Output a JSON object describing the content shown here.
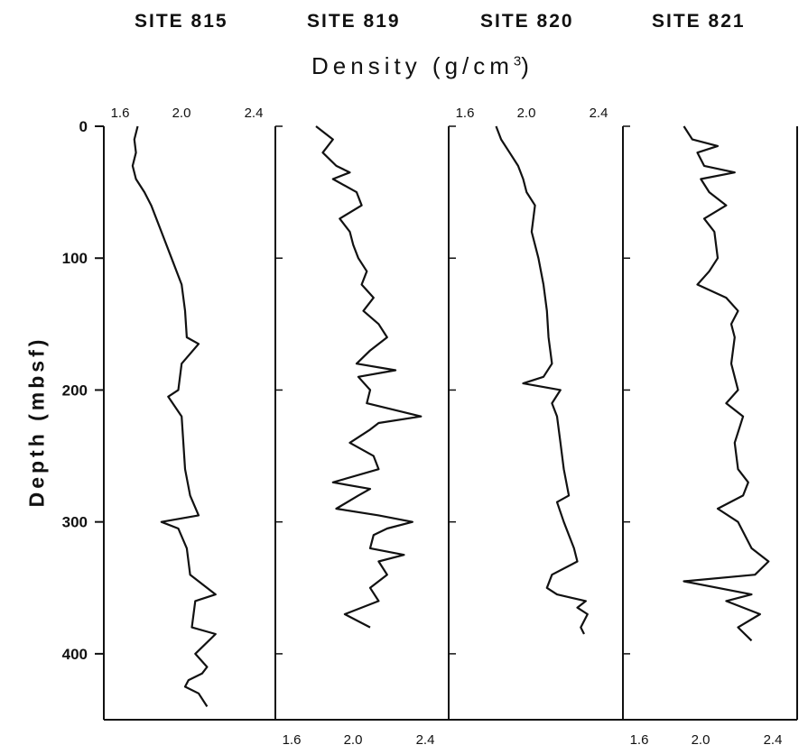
{
  "chart_data": {
    "type": "line",
    "orientation": "depth-log",
    "xlabel_text": "Density (g/cm",
    "xlabel_sup": "3",
    "xlabel_close": ")",
    "ylabel": "Depth (mbsf)",
    "ylim": [
      0,
      450
    ],
    "y_ticks": [
      0,
      100,
      200,
      300,
      400
    ],
    "x_ticks": [
      "1.6",
      "2.0",
      "2.4"
    ],
    "panels": [
      {
        "title": "SITE 815",
        "xlim": [
          1.6,
          2.4
        ],
        "tick_labels": "top",
        "depth": [
          0,
          10,
          20,
          30,
          40,
          50,
          60,
          80,
          100,
          120,
          140,
          160,
          165,
          180,
          200,
          205,
          220,
          240,
          260,
          280,
          295,
          300,
          305,
          320,
          340,
          355,
          360,
          380,
          385,
          400,
          410,
          415,
          420,
          425,
          430,
          440
        ],
        "density": [
          1.64,
          1.62,
          1.63,
          1.61,
          1.63,
          1.68,
          1.72,
          1.78,
          1.84,
          1.9,
          1.92,
          1.93,
          2.0,
          1.9,
          1.88,
          1.82,
          1.9,
          1.91,
          1.92,
          1.95,
          2.0,
          1.78,
          1.88,
          1.93,
          1.95,
          2.1,
          1.98,
          1.96,
          2.1,
          1.98,
          2.05,
          2.02,
          1.94,
          1.92,
          2.0,
          2.05
        ]
      },
      {
        "title": "SITE 819",
        "xlim": [
          1.6,
          2.4
        ],
        "tick_labels": "bottom",
        "depth": [
          0,
          10,
          20,
          30,
          35,
          40,
          50,
          60,
          70,
          80,
          90,
          100,
          110,
          120,
          130,
          140,
          150,
          160,
          170,
          180,
          185,
          190,
          200,
          210,
          220,
          225,
          230,
          240,
          250,
          260,
          270,
          275,
          280,
          290,
          295,
          300,
          305,
          310,
          320,
          325,
          330,
          340,
          350,
          360,
          370,
          380
        ],
        "density": [
          1.68,
          1.78,
          1.72,
          1.8,
          1.88,
          1.78,
          1.92,
          1.95,
          1.82,
          1.88,
          1.9,
          1.93,
          1.98,
          1.95,
          2.02,
          1.96,
          2.05,
          2.1,
          2.0,
          1.92,
          2.15,
          1.93,
          2.0,
          1.98,
          2.3,
          2.05,
          2.0,
          1.88,
          2.02,
          2.05,
          1.78,
          2.0,
          1.93,
          1.8,
          2.05,
          2.25,
          2.1,
          2.02,
          2.0,
          2.2,
          2.05,
          2.1,
          2.0,
          2.05,
          1.85,
          2.0
        ]
      },
      {
        "title": "SITE 820",
        "xlim": [
          1.6,
          2.4
        ],
        "tick_labels": "top",
        "depth": [
          0,
          10,
          20,
          30,
          40,
          50,
          60,
          80,
          100,
          120,
          140,
          160,
          180,
          190,
          195,
          200,
          210,
          220,
          240,
          260,
          280,
          285,
          300,
          320,
          330,
          340,
          350,
          355,
          360,
          365,
          370,
          380,
          385
        ],
        "density": [
          1.72,
          1.75,
          1.8,
          1.85,
          1.88,
          1.9,
          1.95,
          1.93,
          1.97,
          2.0,
          2.02,
          2.03,
          2.05,
          2.0,
          1.88,
          2.1,
          2.05,
          2.08,
          2.1,
          2.12,
          2.15,
          2.08,
          2.12,
          2.18,
          2.2,
          2.05,
          2.02,
          2.08,
          2.25,
          2.2,
          2.26,
          2.22,
          2.24
        ]
      },
      {
        "title": "SITE 821",
        "xlim": [
          1.6,
          2.4
        ],
        "tick_labels": "bottom",
        "depth": [
          0,
          10,
          15,
          20,
          30,
          35,
          40,
          50,
          60,
          70,
          80,
          100,
          110,
          120,
          130,
          140,
          150,
          160,
          180,
          200,
          210,
          220,
          240,
          260,
          270,
          280,
          290,
          300,
          320,
          330,
          340,
          345,
          355,
          360,
          370,
          380,
          390
        ],
        "density": [
          1.8,
          1.85,
          2.0,
          1.88,
          1.92,
          2.1,
          1.9,
          1.95,
          2.05,
          1.92,
          1.98,
          2.0,
          1.95,
          1.88,
          2.05,
          2.12,
          2.08,
          2.1,
          2.08,
          2.12,
          2.05,
          2.15,
          2.1,
          2.12,
          2.18,
          2.15,
          2.0,
          2.12,
          2.2,
          2.3,
          2.22,
          1.8,
          2.2,
          2.05,
          2.25,
          2.12,
          2.2
        ]
      }
    ]
  }
}
